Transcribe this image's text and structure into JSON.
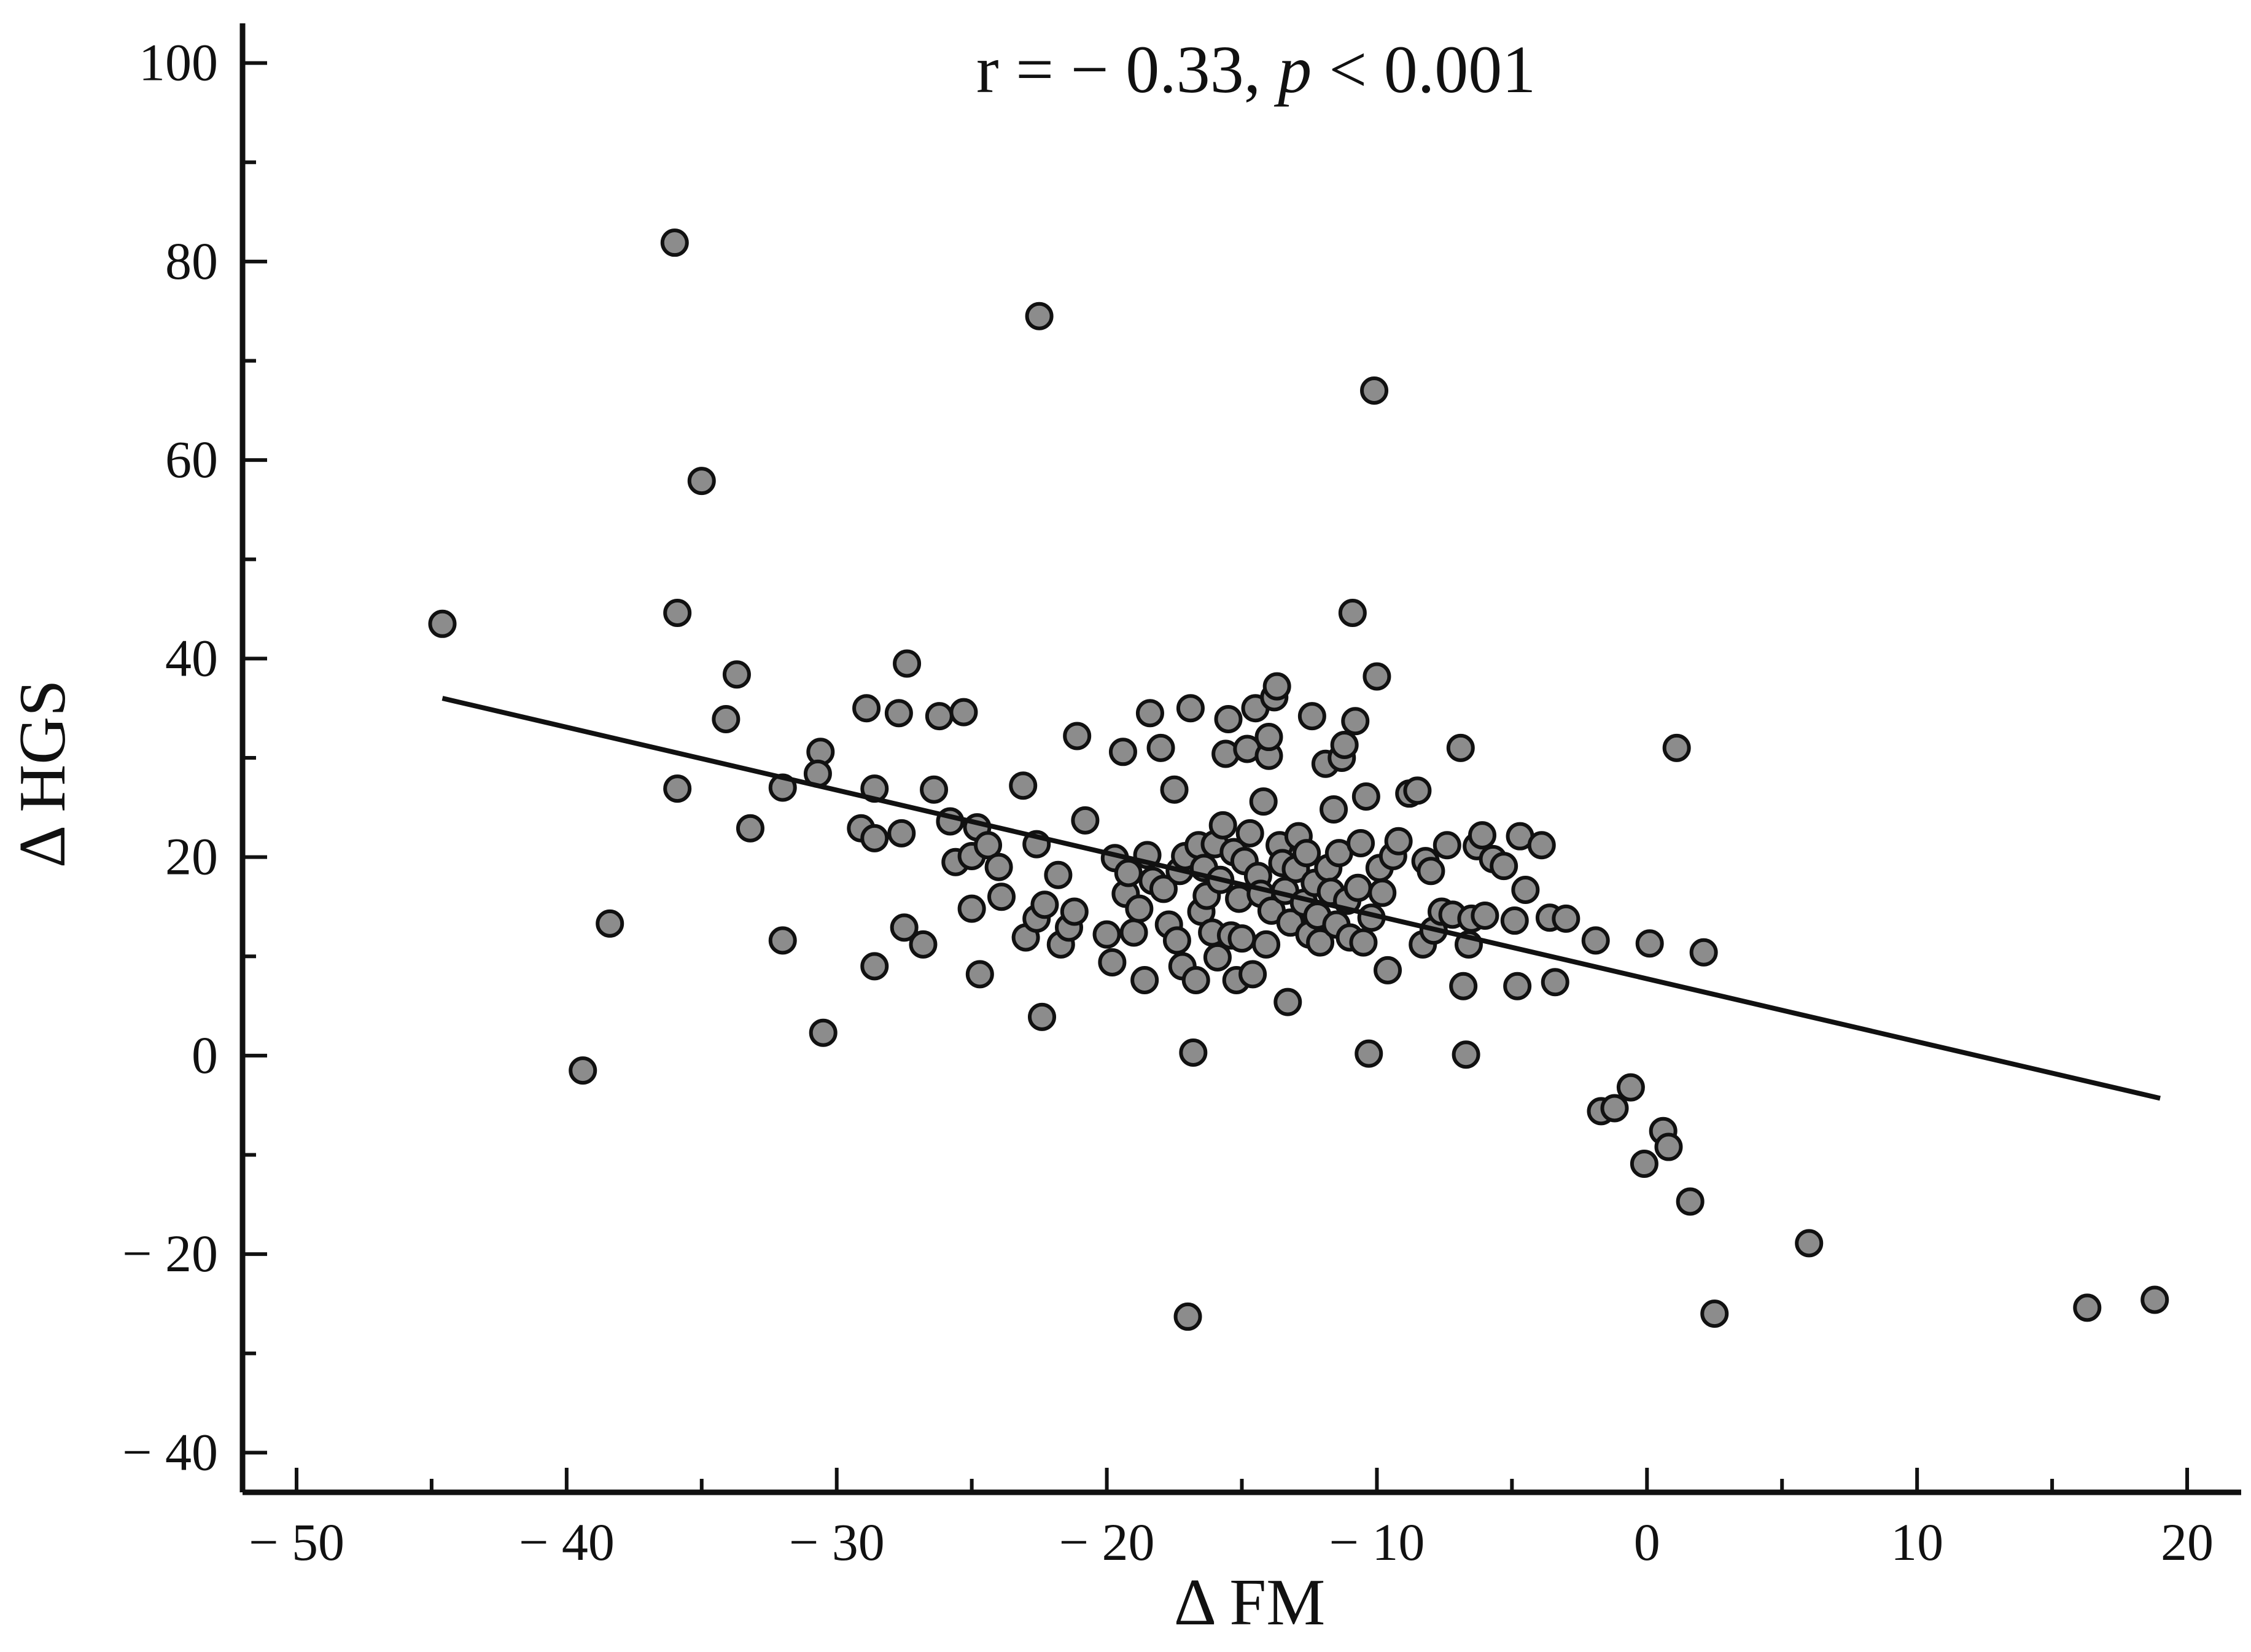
{
  "chart_data": {
    "type": "scatter",
    "title": "",
    "xlabel": "Δ FM",
    "ylabel": "Δ HGS",
    "xlim": [
      -52,
      22
    ],
    "ylim": [
      -44,
      104
    ],
    "x_ticks": [
      -50,
      -40,
      -30,
      -20,
      -10,
      0,
      10,
      20
    ],
    "x_tick_labels": [
      "− 50",
      "− 40",
      "− 30",
      "− 20",
      "− 10",
      "0",
      "10",
      "20"
    ],
    "y_ticks": [
      -40,
      -20,
      0,
      20,
      40,
      60,
      80,
      100
    ],
    "y_tick_labels": [
      "− 40",
      "− 20",
      "0",
      "20",
      "40",
      "60",
      "80",
      "100"
    ],
    "grid": false,
    "annotation": {
      "r_part": "r = − 0.33,",
      "p_symbol": "p",
      "p_part": "< 0.001"
    },
    "fit_line": {
      "x": [
        -44.6,
        19
      ],
      "y": [
        36,
        -4.3
      ]
    },
    "points": [
      [
        -44.6,
        43.5
      ],
      [
        -39.4,
        -1.5
      ],
      [
        -38.4,
        13.3
      ],
      [
        -36,
        81.9
      ],
      [
        -35.9,
        44.6
      ],
      [
        -35.9,
        26.9
      ],
      [
        -35,
        57.9
      ],
      [
        -34.1,
        33.9
      ],
      [
        -33.7,
        38.4
      ],
      [
        -33.2,
        22.9
      ],
      [
        -32,
        27
      ],
      [
        -32,
        11.6
      ],
      [
        -30.6,
        30.6
      ],
      [
        -30.5,
        2.3
      ],
      [
        -30.7,
        28.4
      ],
      [
        -29.1,
        22.9
      ],
      [
        -28.9,
        35
      ],
      [
        -28.6,
        26.9
      ],
      [
        -28.6,
        21.9
      ],
      [
        -28.6,
        9
      ],
      [
        -27.7,
        34.5
      ],
      [
        -27.6,
        22.4
      ],
      [
        -27.5,
        12.9
      ],
      [
        -27.4,
        39.5
      ],
      [
        -26.8,
        11.2
      ],
      [
        -26.4,
        26.8
      ],
      [
        -26.2,
        34.2
      ],
      [
        -25.8,
        23.6
      ],
      [
        -25.6,
        19.5
      ],
      [
        -25.3,
        34.6
      ],
      [
        -25,
        14.8
      ],
      [
        -25,
        20.1
      ],
      [
        -24.8,
        23
      ],
      [
        -24.7,
        8.2
      ],
      [
        -24.4,
        21.2
      ],
      [
        -24,
        19
      ],
      [
        -23.9,
        16
      ],
      [
        -23.1,
        27.2
      ],
      [
        -23,
        11.9
      ],
      [
        -22.5,
        74.5
      ],
      [
        -22.6,
        13.8
      ],
      [
        -22.6,
        21.3
      ],
      [
        -22.4,
        3.9
      ],
      [
        -22.3,
        15.2
      ],
      [
        -21.8,
        18.2
      ],
      [
        -21.7,
        11.2
      ],
      [
        -21.4,
        12.9
      ],
      [
        -21.2,
        14.5
      ],
      [
        -21.1,
        32.2
      ],
      [
        -20.8,
        23.7
      ],
      [
        -20,
        12.2
      ],
      [
        -19.8,
        9.4
      ],
      [
        -19.7,
        19.9
      ],
      [
        -19.4,
        30.6
      ],
      [
        -19.3,
        16.3
      ],
      [
        -19.2,
        18.4
      ],
      [
        -19,
        12.4
      ],
      [
        -18.8,
        14.8
      ],
      [
        -18.6,
        7.6
      ],
      [
        -18.5,
        20.2
      ],
      [
        -18.4,
        34.5
      ],
      [
        -18.3,
        17.6
      ],
      [
        -18,
        31
      ],
      [
        -17.9,
        16.8
      ],
      [
        -17.7,
        13.2
      ],
      [
        -17.5,
        26.8
      ],
      [
        -17.4,
        11.6
      ],
      [
        -17.3,
        18.6
      ],
      [
        -17.2,
        9
      ],
      [
        -17.1,
        20.1
      ],
      [
        -17,
        -26.3
      ],
      [
        -16.9,
        35
      ],
      [
        -16.8,
        0.3
      ],
      [
        -16.7,
        7.6
      ],
      [
        -16.6,
        21.2
      ],
      [
        -16.5,
        14.5
      ],
      [
        -16.4,
        18.9
      ],
      [
        -16.3,
        16.1
      ],
      [
        -16.1,
        12.4
      ],
      [
        -16,
        21.3
      ],
      [
        -15.9,
        9.9
      ],
      [
        -15.8,
        17.7
      ],
      [
        -15.7,
        23.2
      ],
      [
        -15.6,
        30.4
      ],
      [
        -15.5,
        33.9
      ],
      [
        -15.4,
        12.1
      ],
      [
        -15.3,
        20.5
      ],
      [
        -15.2,
        7.6
      ],
      [
        -15.1,
        15.8
      ],
      [
        -15,
        11.8
      ],
      [
        -14.9,
        19.6
      ],
      [
        -14.8,
        30.9
      ],
      [
        -14.7,
        22.4
      ],
      [
        -14.6,
        8.2
      ],
      [
        -14.5,
        35
      ],
      [
        -14.4,
        18.1
      ],
      [
        -14.3,
        16.3
      ],
      [
        -14.2,
        25.6
      ],
      [
        -14.1,
        11.2
      ],
      [
        -14,
        30.2
      ],
      [
        -14,
        32.1
      ],
      [
        -13.9,
        14.6
      ],
      [
        -13.8,
        36.1
      ],
      [
        -13.7,
        37.2
      ],
      [
        -13.6,
        21.2
      ],
      [
        -13.5,
        19.4
      ],
      [
        -13.4,
        16.6
      ],
      [
        -13.3,
        5.4
      ],
      [
        -13.2,
        13.4
      ],
      [
        -13,
        18.8
      ],
      [
        -12.9,
        22.1
      ],
      [
        -12.7,
        15.4
      ],
      [
        -12.6,
        20.4
      ],
      [
        -12.5,
        12.2
      ],
      [
        -12.4,
        34.2
      ],
      [
        -12.3,
        17.4
      ],
      [
        -12.2,
        14.1
      ],
      [
        -12.1,
        11.4
      ],
      [
        -11.9,
        29.4
      ],
      [
        -11.8,
        18.9
      ],
      [
        -11.7,
        16.5
      ],
      [
        -11.6,
        24.8
      ],
      [
        -11.5,
        13.2
      ],
      [
        -11.4,
        20.4
      ],
      [
        -11.3,
        30
      ],
      [
        -11.2,
        31.3
      ],
      [
        -11.1,
        15.6
      ],
      [
        -11,
        11.9
      ],
      [
        -10.9,
        44.6
      ],
      [
        -10.8,
        33.7
      ],
      [
        -10.7,
        16.9
      ],
      [
        -10.6,
        21.4
      ],
      [
        -10.5,
        11.4
      ],
      [
        -10.4,
        26.1
      ],
      [
        -10.3,
        0.2
      ],
      [
        -10.2,
        13.9
      ],
      [
        -10.1,
        67
      ],
      [
        -10,
        38.2
      ],
      [
        -9.9,
        18.9
      ],
      [
        -9.8,
        16.4
      ],
      [
        -9.6,
        8.6
      ],
      [
        -9.4,
        20.1
      ],
      [
        -9.2,
        21.6
      ],
      [
        -8.8,
        26.4
      ],
      [
        -8.5,
        26.7
      ],
      [
        -8.3,
        11.2
      ],
      [
        -8.2,
        19.6
      ],
      [
        -8,
        18.6
      ],
      [
        -7.9,
        12.6
      ],
      [
        -7.6,
        14.5
      ],
      [
        -7.4,
        21.2
      ],
      [
        -7.2,
        14.2
      ],
      [
        -6.9,
        31
      ],
      [
        -6.8,
        7
      ],
      [
        -6.7,
        0.1
      ],
      [
        -6.6,
        11.2
      ],
      [
        -6.5,
        13.8
      ],
      [
        -6.3,
        21.1
      ],
      [
        -6.1,
        22.2
      ],
      [
        -6,
        14.1
      ],
      [
        -5.7,
        19.8
      ],
      [
        -5.3,
        19.1
      ],
      [
        -4.9,
        13.6
      ],
      [
        -4.8,
        7
      ],
      [
        -4.7,
        22.1
      ],
      [
        -4.5,
        16.7
      ],
      [
        -3.9,
        21.2
      ],
      [
        -3.6,
        13.9
      ],
      [
        -3.4,
        7.4
      ],
      [
        -3,
        13.8
      ],
      [
        -1.9,
        11.6
      ],
      [
        -1.7,
        -5.6
      ],
      [
        -1.2,
        -5.3
      ],
      [
        -0.6,
        -3.2
      ],
      [
        -0.1,
        -10.9
      ],
      [
        0.1,
        11.3
      ],
      [
        0.6,
        -7.6
      ],
      [
        0.8,
        -9.2
      ],
      [
        1.1,
        31
      ],
      [
        1.6,
        -14.7
      ],
      [
        2.1,
        10.4
      ],
      [
        2.5,
        -26
      ],
      [
        6,
        -18.9
      ],
      [
        16.3,
        -25.4
      ],
      [
        18.8,
        -24.6
      ]
    ]
  }
}
